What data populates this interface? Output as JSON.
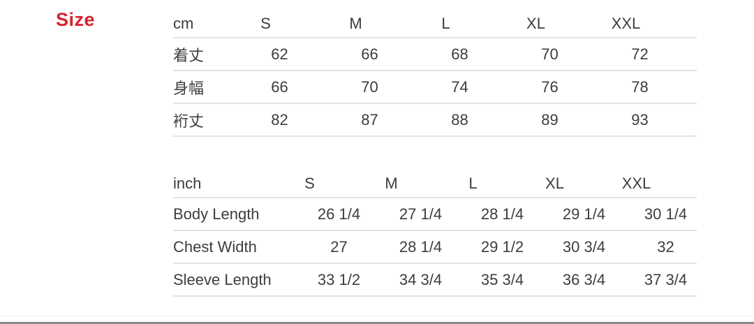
{
  "section_title": "Size",
  "colors": {
    "accent_red": "#d8232a",
    "text": "#3d3d3d",
    "rule_line": "#e3e3e5",
    "bottom_bar": "#8b8b8b",
    "background": "#ffffff"
  },
  "cm_table": {
    "unit": "cm",
    "sizes": [
      "S",
      "M",
      "L",
      "XL",
      "XXL"
    ],
    "rows": [
      {
        "label": "着丈",
        "values": [
          "62",
          "66",
          "68",
          "70",
          "72"
        ]
      },
      {
        "label": "身幅",
        "values": [
          "66",
          "70",
          "74",
          "76",
          "78"
        ]
      },
      {
        "label": "裄丈",
        "values": [
          "82",
          "87",
          "88",
          "89",
          "93"
        ]
      }
    ]
  },
  "inch_table": {
    "unit": "inch",
    "sizes": [
      "S",
      "M",
      "L",
      "XL",
      "XXL"
    ],
    "rows": [
      {
        "label": "Body Length",
        "values": [
          "26 1/4",
          "27 1/4",
          "28 1/4",
          "29 1/4",
          "30 1/4"
        ]
      },
      {
        "label": "Chest Width",
        "values": [
          "27",
          "28 1/4",
          "29 1/2",
          "30 3/4",
          "32"
        ]
      },
      {
        "label": "Sleeve Length",
        "values": [
          "33 1/2",
          "34 3/4",
          "35 3/4",
          "36 3/4",
          "37 3/4"
        ]
      }
    ]
  }
}
